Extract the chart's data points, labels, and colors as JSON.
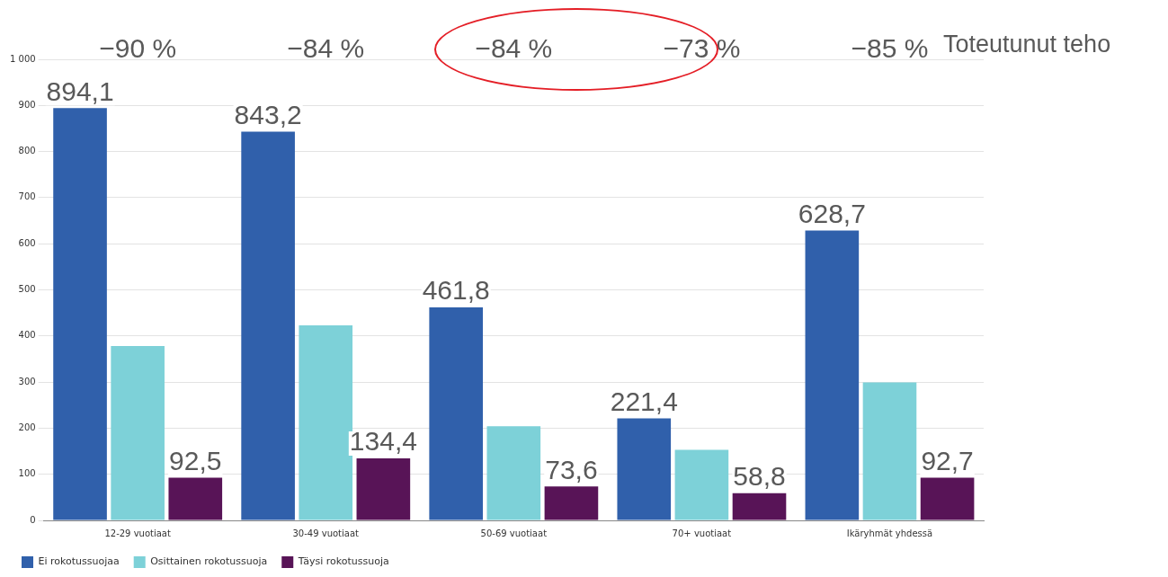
{
  "chart_data": {
    "type": "bar",
    "categories": [
      "12-29 vuotiaat",
      "30-49 vuotiaat",
      "50-69 vuotiaat",
      "70+ vuotiaat",
      "Ikäryhmät yhdessä"
    ],
    "series": [
      {
        "name": "Ei rokotussuojaa",
        "color": "#3060ab",
        "values": [
          894.1,
          843.2,
          461.8,
          221.4,
          628.7
        ],
        "value_labels": [
          "894,1",
          "843,2",
          "461,8",
          "221,4",
          "628,7"
        ]
      },
      {
        "name": "Osittainen rokotussuoja",
        "color": "#7dd1d8",
        "values": [
          378,
          423,
          204,
          153,
          299
        ]
      },
      {
        "name": "Täysi rokotussuoja",
        "color": "#581457",
        "values": [
          92.5,
          134.4,
          73.6,
          58.8,
          92.7
        ],
        "value_labels": [
          "92,5",
          "134,4",
          "73,6",
          "58,8",
          "92,7"
        ]
      }
    ],
    "ylim": [
      0,
      1000
    ],
    "yticks": [
      0,
      100,
      200,
      300,
      400,
      500,
      600,
      700,
      800,
      900,
      {
        "value": 1000,
        "label": "1 000"
      }
    ],
    "grid": "y",
    "legend": "bottom left",
    "annotations": [
      "−90 %",
      "−84 %",
      "−84 %",
      "−73 %",
      "−85 %",
      "Toteutunut teho"
    ]
  }
}
